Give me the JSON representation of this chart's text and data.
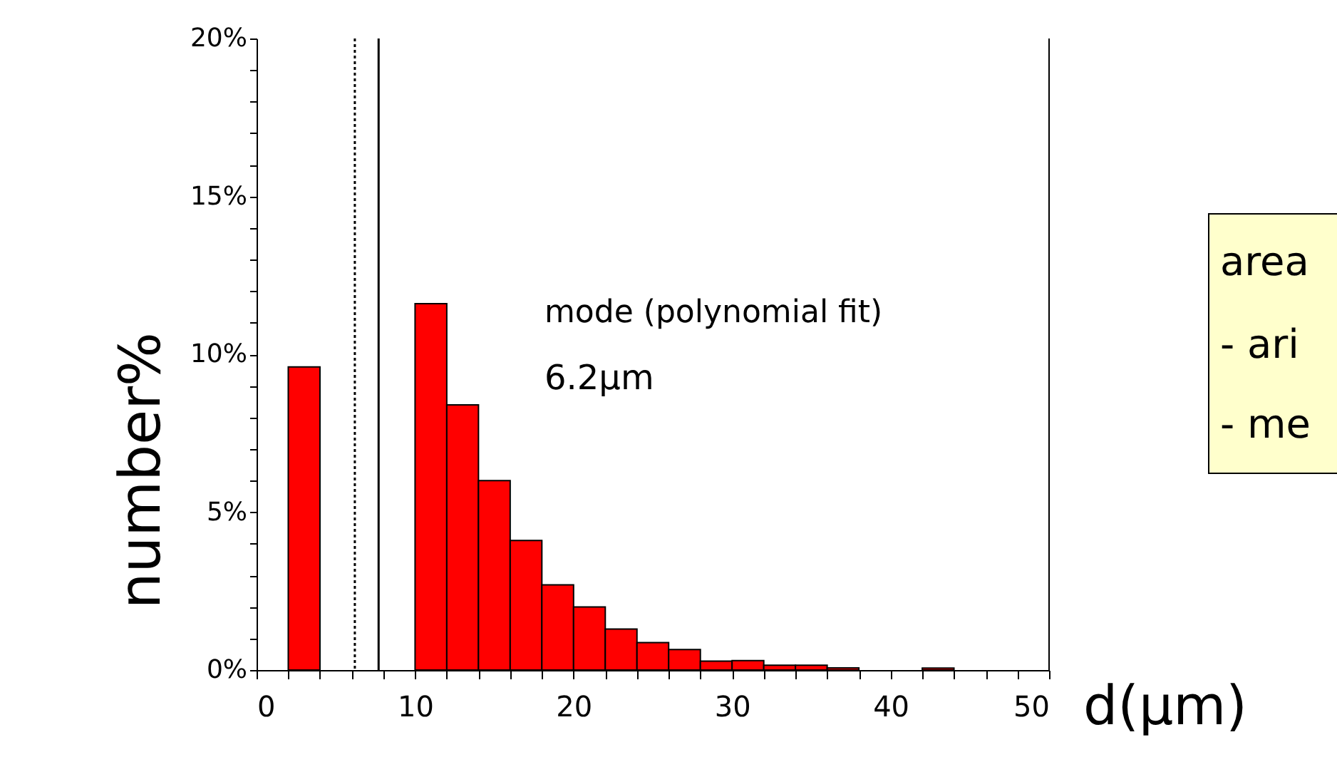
{
  "chart_data": {
    "type": "histogram",
    "xlabel": "d(μm)",
    "ylabel": "number%",
    "bins": [
      2,
      4,
      6,
      8,
      10,
      12,
      14,
      16,
      18,
      20,
      22,
      24,
      26,
      28,
      30,
      32,
      34,
      36,
      38,
      40,
      42,
      44
    ],
    "values": [
      9.6,
      null,
      null,
      null,
      11.6,
      8.4,
      6.0,
      4.1,
      2.7,
      2.0,
      1.3,
      0.87,
      0.65,
      0.28,
      0.3,
      0.15,
      0.15,
      0.07,
      0,
      0,
      0.06
    ],
    "color": "#ff0000",
    "xlim": [
      0,
      50
    ],
    "ylim": [
      0,
      20
    ],
    "xticks": [
      0,
      {
        "value": 2,
        "label": null
      },
      {
        "value": 4,
        "label": null
      },
      {
        "value": 6,
        "label": null
      },
      {
        "value": 8,
        "label": null
      },
      10,
      {
        "value": 12,
        "label": null
      },
      {
        "value": 14,
        "label": null
      },
      {
        "value": 16,
        "label": null
      },
      {
        "value": 18,
        "label": null
      },
      20,
      {
        "value": 22,
        "label": null
      },
      {
        "value": 24,
        "label": null
      },
      {
        "value": 26,
        "label": null
      },
      {
        "value": 28,
        "label": null
      },
      30,
      {
        "value": 32,
        "label": null
      },
      {
        "value": 34,
        "label": null
      },
      {
        "value": 36,
        "label": null
      },
      {
        "value": 38,
        "label": null
      },
      40,
      {
        "value": 42,
        "label": null
      },
      {
        "value": 44,
        "label": null
      },
      {
        "value": 46,
        "label": null
      },
      {
        "value": 48,
        "label": null
      },
      50
    ],
    "yticks": [
      {
        "value": 0,
        "label": "0%"
      },
      {
        "value": 1,
        "label": null
      },
      {
        "value": 2,
        "label": null
      },
      {
        "value": 3,
        "label": null
      },
      {
        "value": 4,
        "label": null
      },
      {
        "value": 5,
        "label": "5%"
      },
      {
        "value": 6,
        "label": null
      },
      {
        "value": 7,
        "label": null
      },
      {
        "value": 8,
        "label": null
      },
      {
        "value": 9,
        "label": null
      },
      {
        "value": 10,
        "label": "10%"
      },
      {
        "value": 11,
        "label": null
      },
      {
        "value": 12,
        "label": null
      },
      {
        "value": 13,
        "label": null
      },
      {
        "value": 14,
        "label": null
      },
      {
        "value": 15,
        "label": "15%"
      },
      {
        "value": 16,
        "label": null
      },
      {
        "value": 17,
        "label": null
      },
      {
        "value": 18,
        "label": null
      },
      {
        "value": 19,
        "label": null
      },
      {
        "value": 20,
        "label": "20%"
      }
    ],
    "ref_lines": [
      {
        "axis": "x",
        "value": 6.2,
        "color": "#000000",
        "line_style": "dotted"
      },
      {
        "axis": "x",
        "value": 7.7,
        "color": "#000000",
        "line_style": "solid"
      }
    ],
    "annotations": [
      "mode (polynomial fit)",
      "6.2μm",
      "area",
      "- ari",
      "- me"
    ],
    "grid": false
  }
}
